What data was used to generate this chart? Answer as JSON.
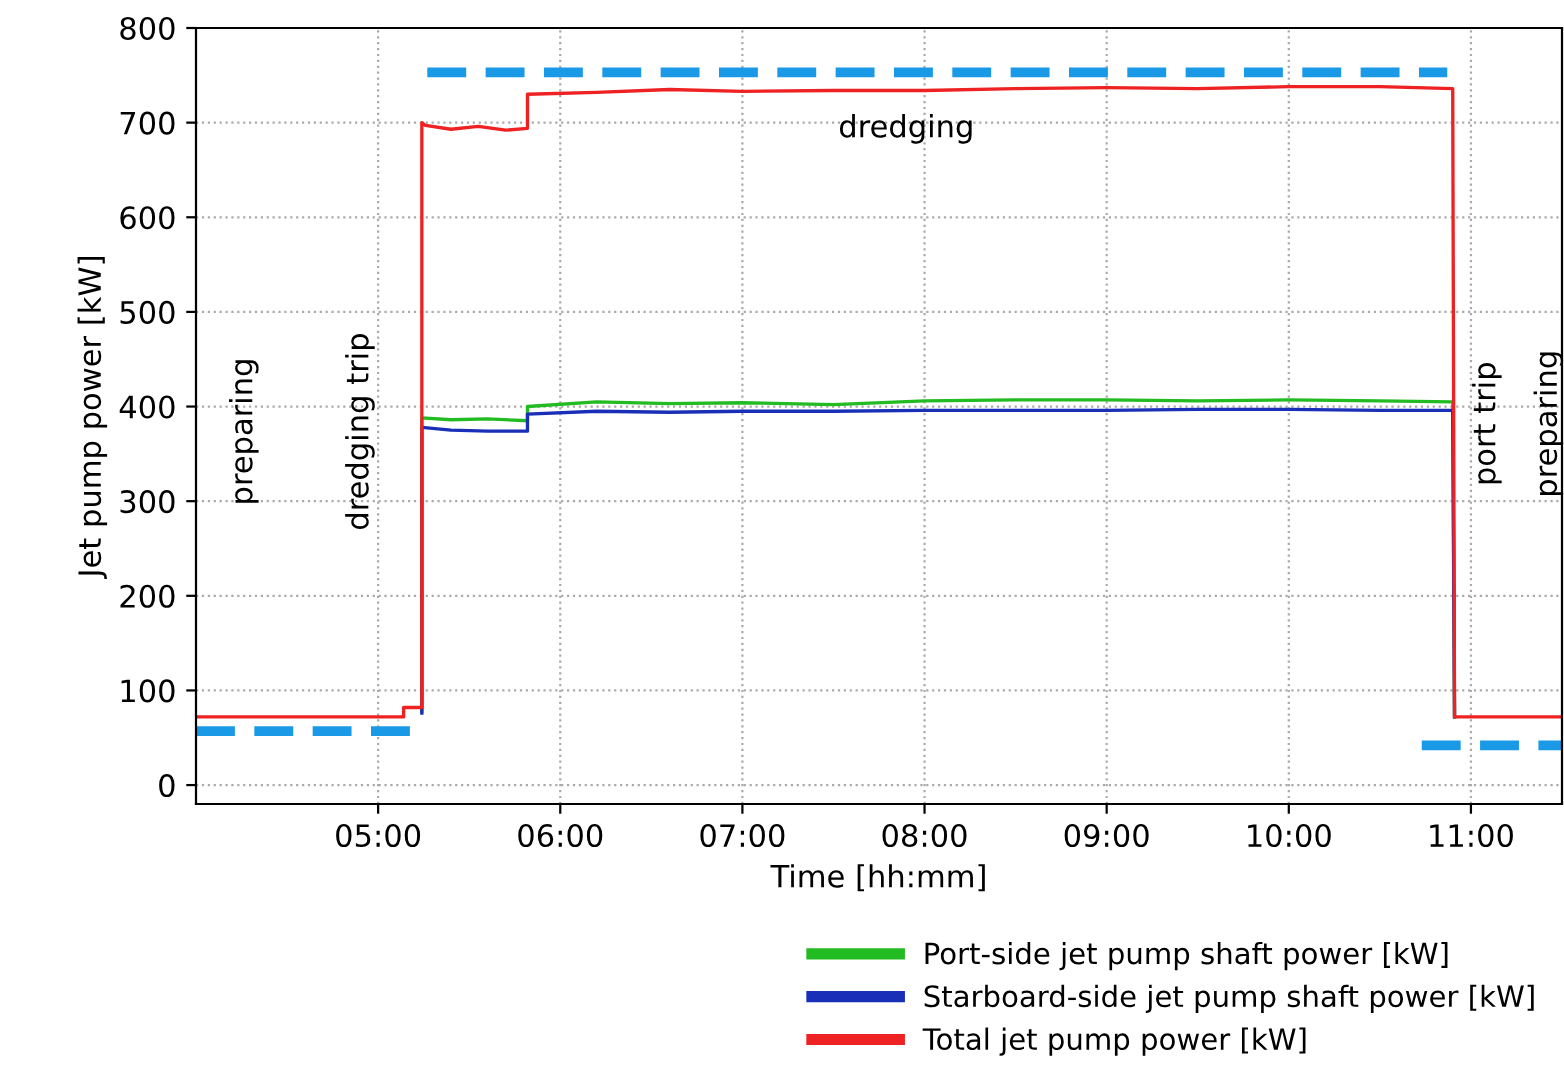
{
  "chart_data": {
    "type": "line",
    "xlabel": "Time [hh:mm]",
    "ylabel": "Jet pump power [kW]",
    "xlim": [
      4.0,
      11.5
    ],
    "ylim": [
      -20,
      800
    ],
    "xticks": [
      {
        "value": 5,
        "label": "05:00"
      },
      {
        "value": 6,
        "label": "06:00"
      },
      {
        "value": 7,
        "label": "07:00"
      },
      {
        "value": 8,
        "label": "08:00"
      },
      {
        "value": 9,
        "label": "09:00"
      },
      {
        "value": 10,
        "label": "10:00"
      },
      {
        "value": 11,
        "label": "11:00"
      }
    ],
    "yticks": [
      0,
      100,
      200,
      300,
      400,
      500,
      600,
      700,
      800
    ],
    "grid": true,
    "legend": "bottom right",
    "series": [
      {
        "name": "Port-side jet pump shaft power [kW]",
        "color": "#22bb22",
        "x": [
          5.24,
          5.24,
          5.4,
          5.6,
          5.82,
          5.82,
          6.2,
          6.6,
          7.0,
          7.5,
          8.0,
          8.5,
          9.0,
          9.5,
          10.0,
          10.5,
          10.9,
          10.91
        ],
        "values": [
          78,
          388,
          386,
          387,
          385,
          400,
          405,
          403,
          404,
          402,
          406,
          407,
          407,
          406,
          407,
          406,
          405,
          72
        ]
      },
      {
        "name": "Starboard-side jet pump shaft power [kW]",
        "color": "#1a2fb8",
        "x": [
          5.24,
          5.24,
          5.4,
          5.6,
          5.82,
          5.82,
          6.2,
          6.6,
          7.0,
          7.5,
          8.0,
          8.5,
          9.0,
          9.5,
          10.0,
          10.5,
          10.9,
          10.91
        ],
        "values": [
          76,
          378,
          375,
          374,
          374,
          392,
          395,
          394,
          395,
          395,
          396,
          396,
          396,
          397,
          397,
          396,
          396,
          72
        ]
      },
      {
        "name": "Total jet pump power [kW]",
        "color": "#ee2222",
        "x": [
          4.0,
          5.14,
          5.14,
          5.24,
          5.24,
          5.26,
          5.4,
          5.55,
          5.7,
          5.82,
          5.82,
          6.2,
          6.6,
          7.0,
          7.5,
          8.0,
          8.5,
          9.0,
          9.5,
          10.0,
          10.5,
          10.9,
          10.91,
          10.95,
          11.5
        ],
        "values": [
          72,
          72,
          82,
          82,
          700,
          697,
          693,
          696,
          692,
          694,
          730,
          732,
          735,
          733,
          734,
          734,
          736,
          737,
          736,
          738,
          738,
          736,
          72,
          72,
          72
        ]
      },
      {
        "color": "#1a9ae6",
        "line_style": "dashed",
        "x": [
          4.0,
          5.22,
          5.245,
          5.27,
          10.87,
          10.8,
          10.73,
          11.5
        ],
        "values": [
          57,
          57,
          null,
          753,
          753,
          null,
          42,
          42
        ]
      }
    ],
    "annotations": [
      "preparing",
      "dredging trip",
      "dredging",
      "port trip",
      "preparing"
    ]
  }
}
